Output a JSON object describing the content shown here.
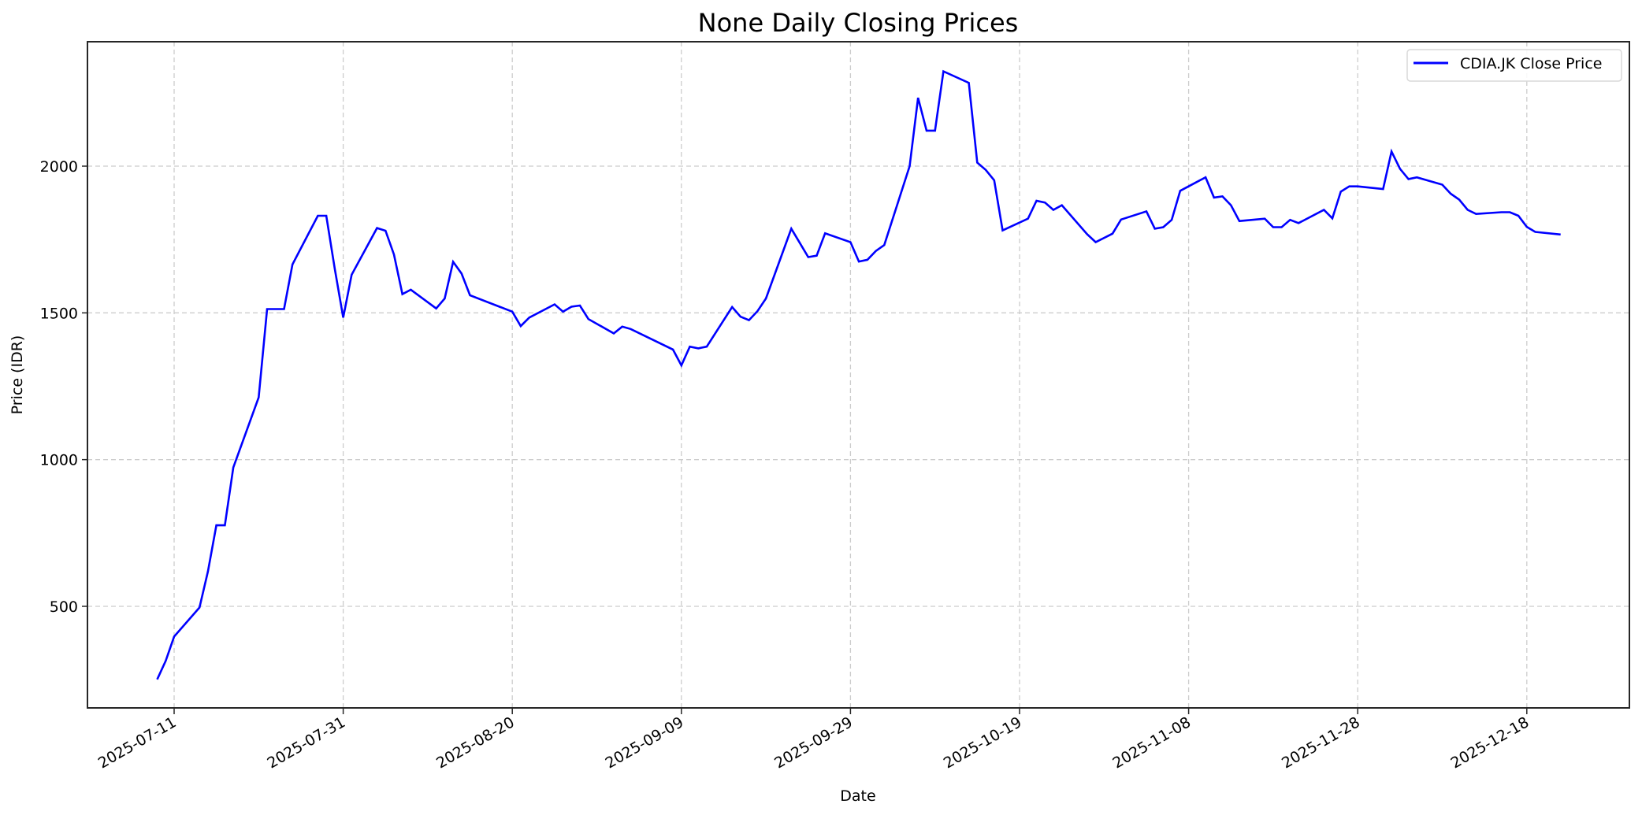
{
  "chart_data": {
    "type": "line",
    "title": "None Daily Closing Prices",
    "xlabel": "Date",
    "ylabel": "Price (IDR)",
    "grid": true,
    "legend_position": "upper right",
    "ylim": [
      154,
      2424
    ],
    "xlim": [
      "2025-06-30",
      "2025-12-30"
    ],
    "x_ticks": [
      "2025-07-11",
      "2025-07-31",
      "2025-08-20",
      "2025-09-09",
      "2025-09-29",
      "2025-10-19",
      "2025-11-08",
      "2025-11-28",
      "2025-12-18"
    ],
    "y_ticks": [
      500,
      1000,
      1500,
      2000
    ],
    "series": [
      {
        "name": "CDIA.JK Close Price",
        "color": "#0000ff",
        "x": [
          "2025-07-09",
          "2025-07-10",
          "2025-07-11",
          "2025-07-14",
          "2025-07-15",
          "2025-07-16",
          "2025-07-17",
          "2025-07-18",
          "2025-07-21",
          "2025-07-22",
          "2025-07-24",
          "2025-07-25",
          "2025-07-28",
          "2025-07-29",
          "2025-07-30",
          "2025-07-31",
          "2025-08-01",
          "2025-08-04",
          "2025-08-05",
          "2025-08-06",
          "2025-08-07",
          "2025-08-08",
          "2025-08-11",
          "2025-08-12",
          "2025-08-13",
          "2025-08-14",
          "2025-08-15",
          "2025-08-20",
          "2025-08-21",
          "2025-08-22",
          "2025-08-25",
          "2025-08-26",
          "2025-08-27",
          "2025-08-28",
          "2025-08-29",
          "2025-09-01",
          "2025-09-02",
          "2025-09-03",
          "2025-09-08",
          "2025-09-09",
          "2025-09-10",
          "2025-09-11",
          "2025-09-12",
          "2025-09-15",
          "2025-09-16",
          "2025-09-17",
          "2025-09-18",
          "2025-09-19",
          "2025-09-22",
          "2025-09-24",
          "2025-09-25",
          "2025-09-26",
          "2025-09-29",
          "2025-09-30",
          "2025-10-01",
          "2025-10-02",
          "2025-10-03",
          "2025-10-06",
          "2025-10-07",
          "2025-10-08",
          "2025-10-09",
          "2025-10-10",
          "2025-10-13",
          "2025-10-14",
          "2025-10-15",
          "2025-10-16",
          "2025-10-17",
          "2025-10-20",
          "2025-10-21",
          "2025-10-22",
          "2025-10-23",
          "2025-10-24",
          "2025-10-27",
          "2025-10-28",
          "2025-10-30",
          "2025-10-31",
          "2025-11-03",
          "2025-11-04",
          "2025-11-05",
          "2025-11-06",
          "2025-11-07",
          "2025-11-10",
          "2025-11-11",
          "2025-11-12",
          "2025-11-13",
          "2025-11-14",
          "2025-11-17",
          "2025-11-18",
          "2025-11-19",
          "2025-11-20",
          "2025-11-21",
          "2025-11-24",
          "2025-11-25",
          "2025-11-26",
          "2025-11-27",
          "2025-11-28",
          "2025-12-01",
          "2025-12-02",
          "2025-12-03",
          "2025-12-04",
          "2025-12-05",
          "2025-12-08",
          "2025-12-09",
          "2025-12-10",
          "2025-12-11",
          "2025-12-12",
          "2025-12-15",
          "2025-12-16",
          "2025-12-17",
          "2025-12-18",
          "2025-12-19",
          "2025-12-22"
        ],
        "values": [
          251,
          314,
          397,
          496,
          619,
          776,
          776,
          973,
          1212,
          1513,
          1513,
          1665,
          1831,
          1831,
          1650,
          1484,
          1630,
          1789,
          1780,
          1699,
          1564,
          1579,
          1515,
          1549,
          1674,
          1634,
          1560,
          1504,
          1455,
          1484,
          1529,
          1504,
          1521,
          1525,
          1479,
          1430,
          1453,
          1445,
          1375,
          1321,
          1385,
          1379,
          1385,
          1520,
          1487,
          1475,
          1506,
          1549,
          1787,
          1690,
          1695,
          1771,
          1741,
          1675,
          1681,
          1711,
          1731,
          2000,
          2233,
          2121,
          2121,
          2323,
          2284,
          2012,
          1987,
          1952,
          1781,
          1821,
          1882,
          1876,
          1851,
          1867,
          1768,
          1741,
          1770,
          1818,
          1846,
          1787,
          1792,
          1817,
          1916,
          1962,
          1893,
          1897,
          1867,
          1813,
          1821,
          1792,
          1792,
          1817,
          1806,
          1851,
          1822,
          1913,
          1931,
          1931,
          1922,
          2050,
          1991,
          1956,
          1962,
          1937,
          1906,
          1886,
          1851,
          1837,
          1843,
          1843,
          1831,
          1793,
          1776,
          1767
        ]
      }
    ]
  },
  "legend": {
    "items": [
      {
        "label": "CDIA.JK Close Price",
        "color": "#0000ff"
      }
    ]
  },
  "colors": {
    "line": "#0000ff",
    "grid": "#cccccc",
    "axis": "#262626",
    "background": "#ffffff"
  }
}
